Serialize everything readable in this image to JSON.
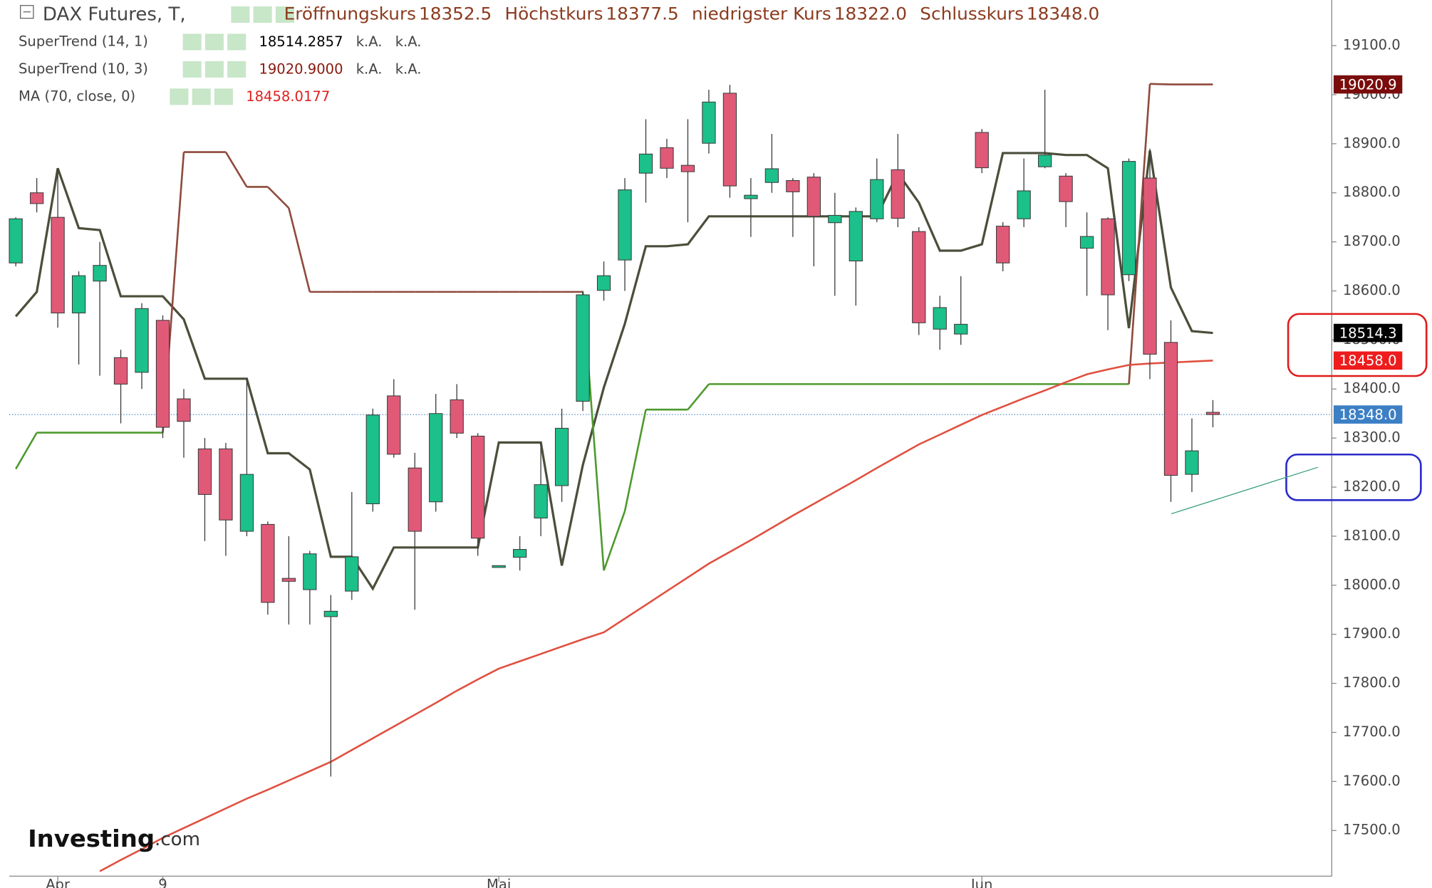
{
  "chart_data": {
    "type": "candlestick",
    "title": "DAX Futures, T,",
    "header": [
      {
        "label": "Eröffnungskurs",
        "value": "18352.5"
      },
      {
        "label": "Höchstkurs",
        "value": "18377.5"
      },
      {
        "label": "niedrigster Kurs",
        "value": "18322.0"
      },
      {
        "label": "Schlusskurs",
        "value": "18348.0"
      }
    ],
    "categories": [
      null,
      null,
      "Apr",
      null,
      null,
      null,
      null,
      "9",
      null,
      null,
      null,
      null,
      null,
      null,
      null,
      null,
      null,
      null,
      null,
      null,
      null,
      null,
      null,
      "Mai",
      null,
      null,
      null,
      null,
      null,
      null,
      null,
      null,
      null,
      null,
      null,
      null,
      null,
      null,
      null,
      null,
      null,
      null,
      null,
      null,
      null,
      null,
      "Jun",
      null,
      null,
      null,
      null,
      null,
      null,
      null,
      null,
      null,
      null,
      null
    ],
    "open": [
      18657,
      18800,
      18750,
      18555,
      18620,
      18464,
      18434,
      18540,
      18380,
      18278,
      18278,
      18110,
      18124,
      18014,
      17991,
      17936,
      17988,
      18166,
      18386,
      18239,
      18170,
      18378,
      18304,
      18038,
      18057,
      18137,
      18203,
      18375,
      18601,
      18663,
      18840,
      18892,
      18856,
      18901,
      19003,
      18788,
      18821,
      18825,
      18832,
      18739,
      18661,
      18747,
      18847,
      18721,
      18522,
      18512,
      18923,
      18732,
      18747,
      18853,
      18834,
      18687,
      18747,
      18633,
      18830,
      18495,
      18226,
      18352.5
    ],
    "high": [
      18750,
      18830,
      18850,
      18640,
      18700,
      18480,
      18575,
      18550,
      18400,
      18300,
      18290,
      18421,
      18130,
      18100,
      18070,
      17980,
      18190,
      18360,
      18420,
      18270,
      18390,
      18410,
      18310,
      18040,
      18100,
      18290,
      18360,
      18600,
      18660,
      18830,
      18950,
      18910,
      18950,
      19010,
      19020,
      18830,
      18920,
      18830,
      18840,
      18800,
      18770,
      18870,
      18920,
      18730,
      18590,
      18630,
      18930,
      18740,
      18870,
      19010,
      18840,
      18760,
      18750,
      18870,
      18890,
      18540,
      18340,
      18377.5
    ],
    "low": [
      18650,
      18760,
      18525,
      18450,
      18427,
      18330,
      18400,
      18300,
      18260,
      18090,
      18060,
      18100,
      17940,
      17920,
      17920,
      17610,
      17970,
      18150,
      18260,
      17950,
      18150,
      18300,
      18060,
      18036,
      18030,
      18100,
      18170,
      18355,
      18580,
      18600,
      18780,
      18830,
      18740,
      18880,
      18790,
      18710,
      18800,
      18710,
      18650,
      18590,
      18570,
      18740,
      18730,
      18510,
      18480,
      18490,
      18840,
      18640,
      18730,
      18850,
      18730,
      18590,
      18520,
      18620,
      18420,
      18170,
      18190,
      18322
    ],
    "close": [
      18747,
      18778,
      18555,
      18631,
      18652,
      18410,
      18564,
      18322,
      18334,
      18185,
      18133,
      18226,
      17965,
      18008,
      18064,
      17947,
      18058,
      18347,
      18267,
      18110,
      18350,
      18310,
      18096,
      18040,
      18073,
      18205,
      18320,
      18592,
      18631,
      18806,
      18879,
      18850,
      18843,
      18985,
      18814,
      18795,
      18849,
      18802,
      18752,
      18754,
      18762,
      18827,
      18748,
      18535,
      18566,
      18532,
      18851,
      18657,
      18804,
      18877,
      18782,
      18711,
      18592,
      18864,
      18471,
      18224,
      18274,
      18348
    ],
    "up_color": "#1cc08a",
    "down_color": "#e05a78",
    "indicators": [
      {
        "name": "SuperTrend (14, 1)",
        "value_label": "18514.2857",
        "notes": [
          "k.A.",
          "k.A."
        ],
        "color": "#4b4f3a",
        "values": [
          18548,
          18598,
          18850,
          18728,
          18724,
          18589,
          18589,
          18589,
          18542,
          18421,
          18421,
          18421,
          18269,
          18269,
          18236,
          18058,
          18058,
          17993,
          18077,
          18077,
          18077,
          18077,
          18077,
          18291,
          18291,
          18291,
          18040,
          18245,
          18403,
          18533,
          18691,
          18691,
          18695,
          18752,
          18752,
          18752,
          18752,
          18752,
          18752,
          18752,
          18752,
          18752,
          18840,
          18780,
          18682,
          18682,
          18695,
          18881,
          18881,
          18881,
          18877,
          18877,
          18850,
          18524,
          18886,
          18607,
          18518,
          18514.2857
        ]
      },
      {
        "name": "SuperTrend (10, 3)",
        "value_label": "19020.9000",
        "notes": [
          "k.A.",
          "k.A."
        ],
        "color": "#8e4a3c",
        "low_color": "#4e9a2e",
        "values": [
          18237,
          18311,
          18311,
          18311,
          18311,
          18311,
          18311,
          18311,
          18883,
          18883,
          18883,
          18812,
          18812,
          18769,
          18598,
          18598,
          18598,
          18598,
          18598,
          18598,
          18598,
          18598,
          18598,
          18598,
          18598,
          18598,
          18598,
          18598,
          18030,
          18151,
          18358,
          18358,
          18358,
          18410,
          18410,
          18410,
          18410,
          18410,
          18410,
          18410,
          18410,
          18410,
          18410,
          18410,
          18410,
          18410,
          18410,
          18410,
          18410,
          18410,
          18410,
          18410,
          18410,
          18410,
          19022,
          19020.9,
          19020.9,
          19020.9
        ]
      },
      {
        "name": "MA (70, close, 0)",
        "value_label": "18458.0177",
        "notes": [],
        "color": "#e0503f",
        "values": [
          null,
          null,
          null,
          null,
          17417,
          17440,
          17462,
          17485,
          17505,
          17525,
          17545,
          17565,
          17583,
          17602,
          17621,
          17640,
          17664,
          17688,
          17712,
          17736,
          17760,
          17785,
          17808,
          17830,
          17845,
          17860,
          17875,
          17890,
          17904,
          17932,
          17960,
          17988,
          18016,
          18044,
          18068,
          18092,
          18117,
          18142,
          18166,
          18190,
          18214,
          18239,
          18263,
          18287,
          18307,
          18327,
          18347,
          18364,
          18381,
          18397,
          18414,
          18430,
          18440,
          18449,
          18452,
          18454,
          18456,
          18458.0177
        ]
      }
    ],
    "price_labels": [
      {
        "value": 19020.9,
        "label": "19020.9",
        "color": "#7a0c0c"
      },
      {
        "value": 18514.3,
        "label": "18514.3",
        "color": "#000000"
      },
      {
        "value": 18458.0,
        "label": "18458.0",
        "color": "#ee1c1c"
      },
      {
        "value": 18348.0,
        "label": "18348.0",
        "color": "#3c7fc4"
      }
    ],
    "last_price_line": 18348.0,
    "ylim": [
      17407,
      19193
    ],
    "yticks": [
      {
        "value": 17500,
        "label": "17500.0"
      },
      {
        "value": 17600,
        "label": "17600.0"
      },
      {
        "value": 17700,
        "label": "17700.0"
      },
      {
        "value": 17800,
        "label": "17800.0"
      },
      {
        "value": 17900,
        "label": "17900.0"
      },
      {
        "value": 18000,
        "label": "18000.0"
      },
      {
        "value": 18100,
        "label": "18100.0"
      },
      {
        "value": 18200,
        "label": "18200.0"
      },
      {
        "value": 18300,
        "label": "18300.0"
      },
      {
        "value": 18400,
        "label": "18400.0"
      },
      {
        "value": 18500,
        "label": "18500.0"
      },
      {
        "value": 18600,
        "label": "18600.0"
      },
      {
        "value": 18700,
        "label": "18700.0"
      },
      {
        "value": 18800,
        "label": "18800.0"
      },
      {
        "value": 18900,
        "label": "18900.0"
      },
      {
        "value": 19000,
        "label": "19000.0"
      },
      {
        "value": 19100,
        "label": "19100.0"
      }
    ],
    "watermark": [
      "Investing",
      ".com"
    ]
  }
}
